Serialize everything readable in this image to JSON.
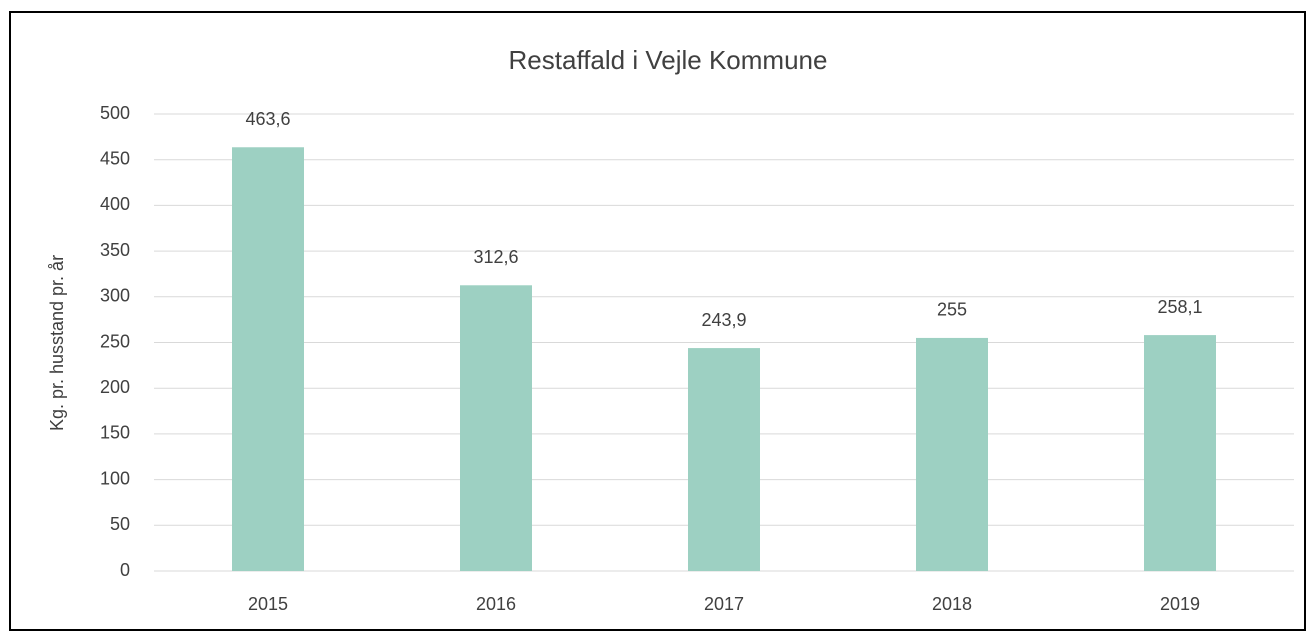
{
  "chart_data": {
    "type": "bar",
    "title": "Restaffald i Vejle Kommune",
    "y_label": "Kg.  pr. husstand pr. år",
    "categories": [
      "2015",
      "2016",
      "2017",
      "2018",
      "2019"
    ],
    "values": [
      463.6,
      312.6,
      243.9,
      255,
      258.1
    ],
    "value_labels": [
      "463,6",
      "312,6",
      "243,9",
      "255",
      "258,1"
    ],
    "color": "#9dd0c2",
    "ylim": [
      0,
      500
    ],
    "yticks": [
      0,
      50,
      100,
      150,
      200,
      250,
      300,
      350,
      400,
      450,
      500
    ],
    "grid": true
  }
}
